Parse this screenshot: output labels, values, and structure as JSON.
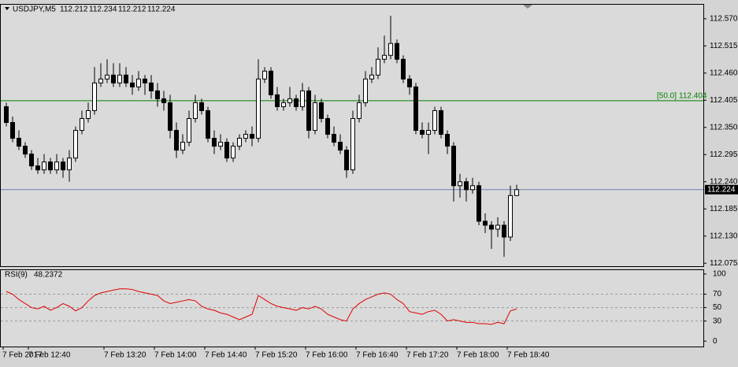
{
  "chart_data": {
    "type": "candlestick",
    "symbol": "USDJPY,M5",
    "categories": [
      "7 Feb 2017",
      null,
      null,
      null,
      "7 Feb 12:40",
      null,
      null,
      null,
      null,
      null,
      null,
      null,
      null,
      null,
      null,
      null,
      "7 Feb 13:20",
      null,
      null,
      null,
      null,
      null,
      null,
      null,
      "7 Feb 14:00",
      null,
      null,
      null,
      null,
      null,
      null,
      null,
      "7 Feb 14:40",
      null,
      null,
      null,
      null,
      null,
      null,
      null,
      "7 Feb 15:20",
      null,
      null,
      null,
      null,
      null,
      null,
      null,
      "7 Feb 16:00",
      null,
      null,
      null,
      null,
      null,
      null,
      null,
      "7 Feb 16:40",
      null,
      null,
      null,
      null,
      null,
      null,
      null,
      "7 Feb 17:20",
      null,
      null,
      null,
      null,
      null,
      null,
      null,
      "7 Feb 18:00",
      null,
      null,
      null,
      null,
      null,
      null,
      null,
      "7 Feb 18:40",
      null
    ],
    "candles": [
      [
        112.392,
        112.4,
        112.352,
        112.36
      ],
      [
        112.36,
        112.372,
        112.32,
        112.328
      ],
      [
        112.328,
        112.344,
        112.304,
        112.312
      ],
      [
        112.312,
        112.32,
        112.288,
        112.296
      ],
      [
        112.296,
        112.304,
        112.264,
        112.272
      ],
      [
        112.272,
        112.288,
        112.256,
        112.264
      ],
      [
        112.264,
        112.296,
        112.256,
        112.28
      ],
      [
        112.28,
        112.288,
        112.256,
        112.264
      ],
      [
        112.264,
        112.296,
        112.256,
        112.28
      ],
      [
        112.28,
        112.288,
        112.248,
        112.264
      ],
      [
        112.264,
        112.304,
        112.24,
        112.288
      ],
      [
        112.288,
        112.352,
        112.28,
        112.344
      ],
      [
        112.344,
        112.384,
        112.336,
        112.368
      ],
      [
        112.368,
        112.4,
        112.36,
        112.384
      ],
      [
        112.384,
        112.472,
        112.376,
        112.44
      ],
      [
        112.44,
        112.48,
        112.432,
        112.448
      ],
      [
        112.448,
        112.488,
        112.44,
        112.456
      ],
      [
        112.456,
        112.48,
        112.432,
        112.44
      ],
      [
        112.44,
        112.48,
        112.432,
        112.456
      ],
      [
        112.456,
        112.472,
        112.432,
        112.44
      ],
      [
        112.44,
        112.456,
        112.416,
        112.432
      ],
      [
        112.432,
        112.464,
        112.424,
        112.448
      ],
      [
        112.448,
        112.456,
        112.416,
        112.44
      ],
      [
        112.44,
        112.456,
        112.408,
        112.424
      ],
      [
        112.424,
        112.44,
        112.392,
        112.408
      ],
      [
        112.408,
        112.424,
        112.384,
        112.4
      ],
      [
        112.4,
        112.416,
        112.328,
        112.344
      ],
      [
        112.344,
        112.36,
        112.288,
        112.304
      ],
      [
        112.304,
        112.336,
        112.296,
        112.32
      ],
      [
        112.32,
        112.384,
        112.312,
        112.368
      ],
      [
        112.368,
        112.416,
        112.36,
        112.4
      ],
      [
        112.4,
        112.408,
        112.376,
        112.384
      ],
      [
        112.384,
        112.392,
        112.32,
        112.328
      ],
      [
        112.328,
        112.344,
        112.296,
        112.312
      ],
      [
        112.312,
        112.336,
        112.304,
        112.32
      ],
      [
        112.32,
        112.328,
        112.28,
        112.288
      ],
      [
        112.288,
        112.32,
        112.28,
        112.312
      ],
      [
        112.312,
        112.336,
        112.304,
        112.328
      ],
      [
        112.328,
        112.344,
        112.32,
        112.336
      ],
      [
        112.336,
        112.352,
        112.312,
        112.328
      ],
      [
        112.328,
        112.488,
        112.32,
        112.448
      ],
      [
        112.448,
        112.472,
        112.44,
        112.464
      ],
      [
        112.464,
        112.472,
        112.408,
        112.416
      ],
      [
        112.416,
        112.432,
        112.384,
        112.392
      ],
      [
        112.392,
        112.408,
        112.384,
        112.4
      ],
      [
        112.4,
        112.432,
        112.392,
        112.408
      ],
      [
        112.408,
        112.416,
        112.384,
        112.392
      ],
      [
        112.392,
        112.44,
        112.384,
        112.424
      ],
      [
        112.424,
        112.432,
        112.328,
        112.344
      ],
      [
        112.344,
        112.416,
        112.336,
        112.4
      ],
      [
        112.4,
        112.408,
        112.36,
        112.368
      ],
      [
        112.368,
        112.376,
        112.328,
        112.336
      ],
      [
        112.336,
        112.352,
        112.312,
        112.32
      ],
      [
        112.32,
        112.336,
        112.296,
        112.304
      ],
      [
        112.304,
        112.312,
        112.248,
        112.264
      ],
      [
        112.264,
        112.384,
        112.256,
        112.368
      ],
      [
        112.368,
        112.416,
        112.36,
        112.4
      ],
      [
        112.4,
        112.464,
        112.392,
        112.448
      ],
      [
        112.448,
        112.472,
        112.44,
        112.456
      ],
      [
        112.456,
        112.512,
        112.448,
        112.488
      ],
      [
        112.488,
        112.536,
        112.48,
        112.496
      ],
      [
        112.496,
        112.576,
        112.488,
        112.52
      ],
      [
        112.52,
        112.528,
        112.48,
        112.488
      ],
      [
        112.488,
        112.496,
        112.44,
        112.448
      ],
      [
        112.448,
        112.456,
        112.416,
        112.432
      ],
      [
        112.432,
        112.44,
        112.336,
        112.344
      ],
      [
        112.344,
        112.36,
        112.328,
        112.336
      ],
      [
        112.336,
        112.36,
        112.296,
        112.344
      ],
      [
        112.344,
        112.392,
        112.336,
        112.384
      ],
      [
        112.384,
        112.392,
        112.328,
        112.336
      ],
      [
        112.336,
        112.344,
        112.296,
        112.312
      ],
      [
        112.312,
        112.32,
        112.2,
        112.232
      ],
      [
        112.232,
        112.256,
        112.208,
        112.24
      ],
      [
        112.24,
        112.248,
        112.2,
        112.224
      ],
      [
        112.224,
        112.248,
        112.216,
        112.232
      ],
      [
        112.232,
        112.24,
        112.152,
        112.16
      ],
      [
        112.16,
        112.176,
        112.136,
        112.152
      ],
      [
        112.152,
        112.16,
        112.104,
        112.144
      ],
      [
        112.144,
        112.168,
        112.128,
        112.152
      ],
      [
        112.152,
        112.16,
        112.088,
        112.128
      ],
      [
        112.128,
        112.232,
        112.12,
        112.212
      ],
      [
        112.212,
        112.234,
        112.212,
        112.224
      ]
    ],
    "bull_color": "#ffffff",
    "bear_color": "#000000",
    "ylim": [
      112.069,
      112.6
    ],
    "yticks": [
      {
        "value": 112.57,
        "label": "112.570"
      },
      112.515,
      {
        "value": 112.46,
        "label": "112.460"
      },
      112.405,
      {
        "value": 112.35,
        "label": "112.350"
      },
      112.295,
      {
        "value": 112.24,
        "label": "112.240"
      },
      112.185,
      {
        "value": 112.13,
        "label": "112.130"
      },
      112.075
    ],
    "level": {
      "label": "[50.0]",
      "value": 112.404,
      "color": "#008000"
    },
    "bid": {
      "value": 112.224,
      "color": "#7080b0"
    },
    "rsi": {
      "type": "line",
      "label": "RSI(9)",
      "last": 48.2372,
      "color": "#e00000",
      "values": [
        74,
        70,
        62,
        56,
        50,
        48,
        52,
        46,
        50,
        56,
        52,
        45,
        50,
        60,
        68,
        72,
        74,
        76,
        78,
        78,
        77,
        74,
        72,
        70,
        68,
        60,
        56,
        58,
        60,
        62,
        60,
        52,
        48,
        46,
        42,
        40,
        36,
        32,
        36,
        40,
        68,
        62,
        56,
        52,
        50,
        48,
        46,
        50,
        48,
        52,
        48,
        40,
        36,
        32,
        30,
        48,
        56,
        62,
        66,
        70,
        72,
        70,
        62,
        56,
        44,
        42,
        40,
        44,
        46,
        40,
        30,
        32,
        30,
        28,
        28,
        26,
        26,
        25,
        28,
        26,
        45,
        48
      ],
      "ylim": [
        -8,
        107
      ],
      "yticks": [
        0,
        30,
        50,
        70,
        100
      ],
      "levels": [
        30,
        50,
        70
      ]
    }
  }
}
